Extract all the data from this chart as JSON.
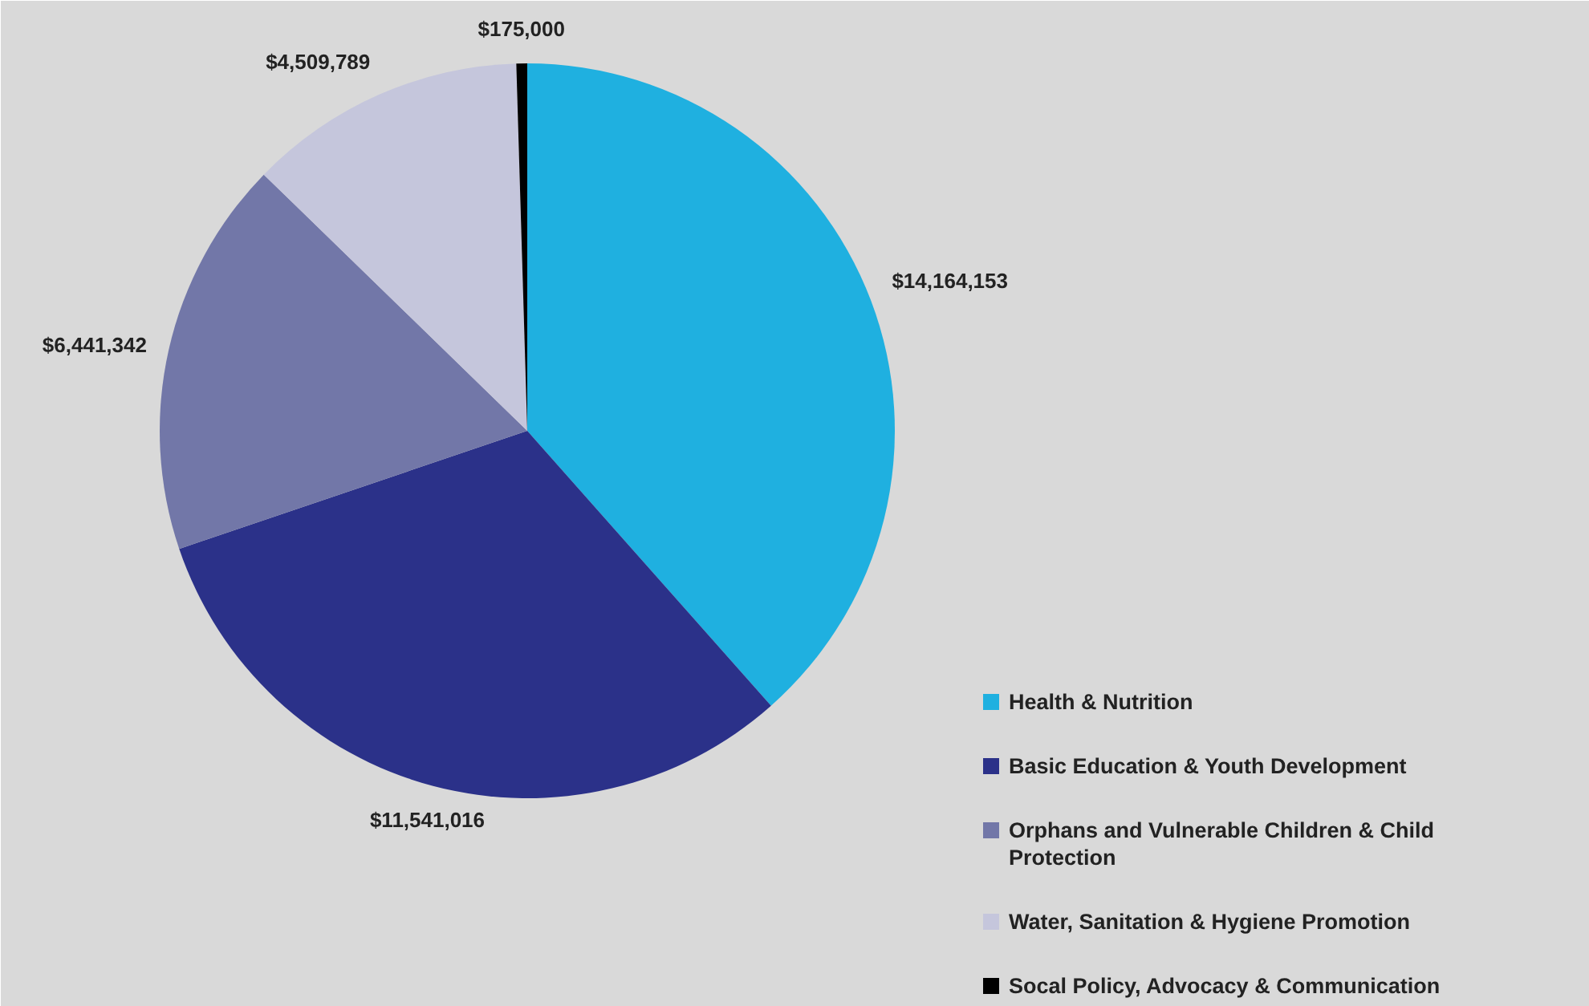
{
  "chart_data": {
    "type": "pie",
    "categories": [
      "Health & Nutrition",
      "Basic Education & Youth Development",
      "Orphans and Vulnerable Children & Child Protection",
      "Water, Sanitation & Hygiene Promotion",
      "Socal Policy, Advocacy & Communication"
    ],
    "values": [
      14164153,
      11541016,
      6441342,
      4509789,
      175000
    ],
    "colors": [
      "#1fb0e0",
      "#2b3189",
      "#7277a8",
      "#c5c6dc",
      "#000000"
    ],
    "value_labels": [
      "$14,164,153",
      "$11,541,016",
      "$6,441,342",
      "$4,509,789",
      "$175,000"
    ],
    "legend": "bottom right"
  }
}
